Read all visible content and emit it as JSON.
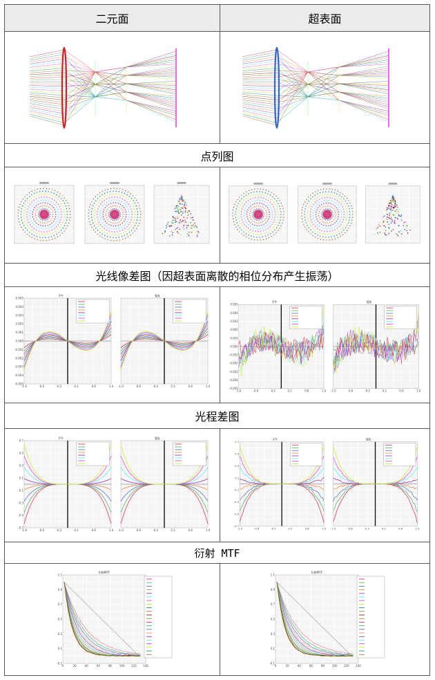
{
  "columns": [
    "二元面",
    "超表面"
  ],
  "sections": {
    "spot": "点列图",
    "ray_aberration": "光线像差图（因超表面离散的相位分布产生振荡）",
    "opd": "光程差图",
    "mtf": "衍射 MTF"
  },
  "plots": {
    "ray_titles": [
      "子午",
      "弧矢"
    ],
    "opd_titles": [
      "子午",
      "弧矢"
    ],
    "mtf_title": "衍射MTF",
    "ray_ticks_x": [
      "-1.0",
      "-0.8",
      "-0.6",
      "-0.4",
      "-0.2",
      "0.0",
      "0.2",
      "0.4",
      "0.6",
      "0.8",
      "1.0"
    ],
    "ray_ticks_y": [
      "0.005",
      "0.004",
      "0.003",
      "0.002",
      "0.001",
      "0.000",
      "-0.001",
      "-0.002",
      "-0.003",
      "-0.004",
      "-0.005"
    ],
    "opd_ticks_y": [
      "0.7",
      "0.6",
      "0.5",
      "0.4",
      "0.3",
      "0.2",
      "0.1",
      "0.0",
      "-0.1",
      "-0.2",
      "-0.3",
      "-0.4",
      "-0.5",
      "-0.6",
      "-0.7"
    ],
    "mtf_ticks_x": [
      "0",
      "20",
      "40",
      "60",
      "80",
      "100",
      "120",
      "140"
    ],
    "mtf_ticks_y": [
      "1.1",
      "1.0",
      "0.9",
      "0.8",
      "0.7",
      "0.6",
      "0.5",
      "0.4",
      "0.3",
      "0.2",
      "0.1",
      "0.0",
      "-0.1"
    ]
  },
  "colors": [
    "#e6194b",
    "#3cb44b",
    "#4363d8",
    "#f58231",
    "#911eb4",
    "#46f0f0",
    "#f032e6",
    "#bcf60c",
    "#008080",
    "#9a6324",
    "#800000",
    "#808000"
  ]
}
